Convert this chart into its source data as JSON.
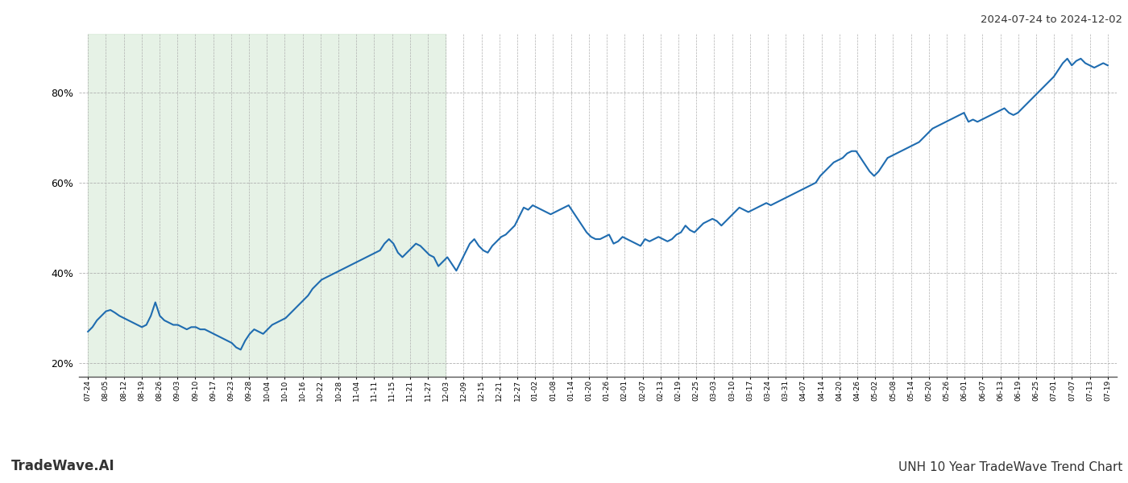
{
  "title_top_right": "2024-07-24 to 2024-12-02",
  "title_bottom_right": "UNH 10 Year TradeWave Trend Chart",
  "title_bottom_left": "TradeWave.AI",
  "line_color": "#1f6cb0",
  "line_width": 1.5,
  "background_color": "#ffffff",
  "green_bg_color": "#d6ead6",
  "green_bg_alpha": 0.6,
  "grid_color": "#b0b0b0",
  "grid_style": "--",
  "ylim": [
    17,
    93
  ],
  "yticks": [
    20,
    40,
    60,
    80
  ],
  "ytick_labels": [
    "20%",
    "40%",
    "60%",
    "80%"
  ],
  "x_labels": [
    "07-24",
    "08-05",
    "08-12",
    "08-19",
    "08-26",
    "09-03",
    "09-10",
    "09-17",
    "09-23",
    "09-28",
    "10-04",
    "10-10",
    "10-16",
    "10-22",
    "10-28",
    "11-04",
    "11-11",
    "11-15",
    "11-21",
    "11-27",
    "12-03",
    "12-09",
    "12-15",
    "12-21",
    "12-27",
    "01-02",
    "01-08",
    "01-14",
    "01-20",
    "01-26",
    "02-01",
    "02-07",
    "02-13",
    "02-19",
    "02-25",
    "03-03",
    "03-10",
    "03-17",
    "03-24",
    "03-31",
    "04-07",
    "04-14",
    "04-20",
    "04-26",
    "05-02",
    "05-08",
    "05-14",
    "05-20",
    "05-26",
    "06-01",
    "06-07",
    "06-13",
    "06-19",
    "06-25",
    "07-01",
    "07-07",
    "07-13",
    "07-19"
  ],
  "green_region_start_label": "07-24",
  "green_region_end_label": "12-03",
  "y_values": [
    27.0,
    28.0,
    29.5,
    30.5,
    31.5,
    31.8,
    31.2,
    30.5,
    30.0,
    29.5,
    29.0,
    28.5,
    28.0,
    28.5,
    30.5,
    33.5,
    30.5,
    29.5,
    29.0,
    28.5,
    28.5,
    28.0,
    27.5,
    28.0,
    28.0,
    27.5,
    27.5,
    27.0,
    26.5,
    26.0,
    25.5,
    25.0,
    24.5,
    23.5,
    23.0,
    25.0,
    26.5,
    27.5,
    27.0,
    26.5,
    27.5,
    28.5,
    29.0,
    29.5,
    30.0,
    31.0,
    32.0,
    33.0,
    34.0,
    35.0,
    36.5,
    37.5,
    38.5,
    39.0,
    39.5,
    40.0,
    40.5,
    41.0,
    41.5,
    42.0,
    42.5,
    43.0,
    43.5,
    44.0,
    44.5,
    45.0,
    46.5,
    47.5,
    46.5,
    44.5,
    43.5,
    44.5,
    45.5,
    46.5,
    46.0,
    45.0,
    44.0,
    43.5,
    41.5,
    42.5,
    43.5,
    42.0,
    40.5,
    42.5,
    44.5,
    46.5,
    47.5,
    46.0,
    45.0,
    44.5,
    46.0,
    47.0,
    48.0,
    48.5,
    49.5,
    50.5,
    52.5,
    54.5,
    54.0,
    55.0,
    54.5,
    54.0,
    53.5,
    53.0,
    53.5,
    54.0,
    54.5,
    55.0,
    53.5,
    52.0,
    50.5,
    49.0,
    48.0,
    47.5,
    47.5,
    48.0,
    48.5,
    46.5,
    47.0,
    48.0,
    47.5,
    47.0,
    46.5,
    46.0,
    47.5,
    47.0,
    47.5,
    48.0,
    47.5,
    47.0,
    47.5,
    48.5,
    49.0,
    50.5,
    49.5,
    49.0,
    50.0,
    51.0,
    51.5,
    52.0,
    51.5,
    50.5,
    51.5,
    52.5,
    53.5,
    54.5,
    54.0,
    53.5,
    54.0,
    54.5,
    55.0,
    55.5,
    55.0,
    55.5,
    56.0,
    56.5,
    57.0,
    57.5,
    58.0,
    58.5,
    59.0,
    59.5,
    60.0,
    61.5,
    62.5,
    63.5,
    64.5,
    65.0,
    65.5,
    66.5,
    67.0,
    67.0,
    65.5,
    64.0,
    62.5,
    61.5,
    62.5,
    64.0,
    65.5,
    66.0,
    66.5,
    67.0,
    67.5,
    68.0,
    68.5,
    69.0,
    70.0,
    71.0,
    72.0,
    72.5,
    73.0,
    73.5,
    74.0,
    74.5,
    75.0,
    75.5,
    73.5,
    74.0,
    73.5,
    74.0,
    74.5,
    75.0,
    75.5,
    76.0,
    76.5,
    75.5,
    75.0,
    75.5,
    76.5,
    77.5,
    78.5,
    79.5,
    80.5,
    81.5,
    82.5,
    83.5,
    85.0,
    86.5,
    87.5,
    86.0,
    87.0,
    87.5,
    86.5,
    86.0,
    85.5,
    86.0,
    86.5,
    86.0
  ]
}
